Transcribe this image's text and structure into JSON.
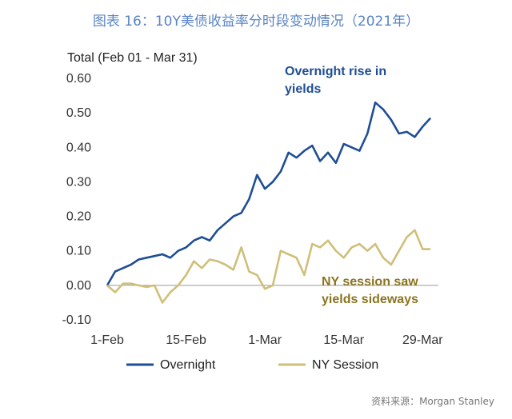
{
  "figure_title": "图表 16：10Y美债收益率分时段变动情况（2021年）",
  "source": "资料来源：Morgan Stanley",
  "colors": {
    "overnight": "#1f4e94",
    "ny_session": "#cfbf79",
    "axis_text": "#333333",
    "annotation_overnight": "#1f4e94",
    "annotation_ny": "#8a7420"
  },
  "chart_data": {
    "type": "line",
    "ylabel": "Total (Feb 01 - Mar 31)",
    "xlabel": "",
    "ylim": [
      -0.1,
      0.6
    ],
    "yticks": [
      "0.60",
      "0.50",
      "0.40",
      "0.30",
      "0.20",
      "0.10",
      "0.00",
      "-0.10"
    ],
    "ytick_values": [
      0.6,
      0.5,
      0.4,
      0.3,
      0.2,
      0.1,
      0.0,
      -0.1
    ],
    "xlim": [
      0,
      42
    ],
    "xticks": [
      "1-Feb",
      "15-Feb",
      "1-Mar",
      "15-Mar",
      "29-Mar"
    ],
    "xtick_positions": [
      0,
      10,
      20,
      30,
      40
    ],
    "grid": false,
    "legend_position": "bottom",
    "series": [
      {
        "name": "Overnight",
        "x": [
          0,
          1,
          2,
          3,
          4,
          5,
          6,
          7,
          8,
          9,
          10,
          11,
          12,
          13,
          14,
          15,
          16,
          17,
          18,
          19,
          20,
          21,
          22,
          23,
          24,
          25,
          26,
          27,
          28,
          29,
          30,
          31,
          32,
          33,
          34,
          35,
          36,
          37,
          38,
          39,
          40,
          41
        ],
        "values": [
          0.0,
          0.04,
          0.05,
          0.06,
          0.075,
          0.08,
          0.085,
          0.09,
          0.08,
          0.1,
          0.11,
          0.13,
          0.14,
          0.13,
          0.16,
          0.18,
          0.2,
          0.21,
          0.25,
          0.32,
          0.28,
          0.3,
          0.33,
          0.385,
          0.37,
          0.39,
          0.405,
          0.36,
          0.385,
          0.355,
          0.41,
          0.4,
          0.39,
          0.44,
          0.53,
          0.51,
          0.48,
          0.44,
          0.445,
          0.43,
          0.46,
          0.485
        ]
      },
      {
        "name": "NY Session",
        "x": [
          0,
          1,
          2,
          3,
          4,
          5,
          6,
          7,
          8,
          9,
          10,
          11,
          12,
          13,
          14,
          15,
          16,
          17,
          18,
          19,
          20,
          21,
          22,
          23,
          24,
          25,
          26,
          27,
          28,
          29,
          30,
          31,
          32,
          33,
          34,
          35,
          36,
          37,
          38,
          39,
          40,
          41
        ],
        "values": [
          0.0,
          -0.02,
          0.005,
          0.005,
          0.0,
          -0.005,
          0.0,
          -0.05,
          -0.02,
          0.0,
          0.03,
          0.07,
          0.05,
          0.075,
          0.07,
          0.06,
          0.045,
          0.11,
          0.04,
          0.03,
          -0.01,
          0.0,
          0.1,
          0.09,
          0.08,
          0.03,
          0.12,
          0.11,
          0.13,
          0.1,
          0.08,
          0.11,
          0.12,
          0.1,
          0.12,
          0.08,
          0.06,
          0.1,
          0.14,
          0.16,
          0.105,
          0.105
        ]
      }
    ],
    "annotations": [
      {
        "id": "overnight",
        "lines": [
          "Overnight rise  in",
          "yields"
        ]
      },
      {
        "id": "ny",
        "lines": [
          "NY session saw",
          "yields sideways"
        ]
      }
    ]
  }
}
